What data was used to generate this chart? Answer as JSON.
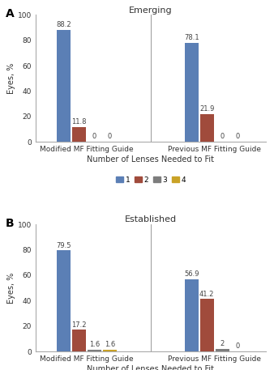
{
  "panel_A": {
    "title": "Emerging",
    "label": "A",
    "groups": [
      "Modified MF Fitting Guide",
      "Previous MF Fitting Guide"
    ],
    "series": {
      "1": [
        88.2,
        78.1
      ],
      "2": [
        11.8,
        21.9
      ],
      "3": [
        0,
        0
      ],
      "4": [
        0,
        0
      ]
    }
  },
  "panel_B": {
    "title": "Established",
    "label": "B",
    "groups": [
      "Modified MF Fitting Guide",
      "Previous MF Fitting Guide"
    ],
    "series": {
      "1": [
        79.5,
        56.9
      ],
      "2": [
        17.2,
        41.2
      ],
      "3": [
        1.6,
        2
      ],
      "4": [
        1.6,
        0
      ]
    }
  },
  "colors": {
    "1": "#5b7fb5",
    "2": "#a04b3c",
    "3": "#7d7d7d",
    "4": "#c9a227"
  },
  "ylabel": "Eyes, %",
  "xlabel": "Number of Lenses Needed to Fit",
  "ylim": [
    0,
    100
  ],
  "yticks": [
    0,
    20,
    40,
    60,
    80,
    100
  ],
  "bar_width": 0.055,
  "group_centers": [
    0.25,
    0.75
  ],
  "legend_labels": [
    "1",
    "2",
    "3",
    "4"
  ],
  "title_fontsize": 8,
  "label_fontsize": 7,
  "tick_fontsize": 6.5,
  "annot_fontsize": 6,
  "group_label_fontsize": 6.5
}
